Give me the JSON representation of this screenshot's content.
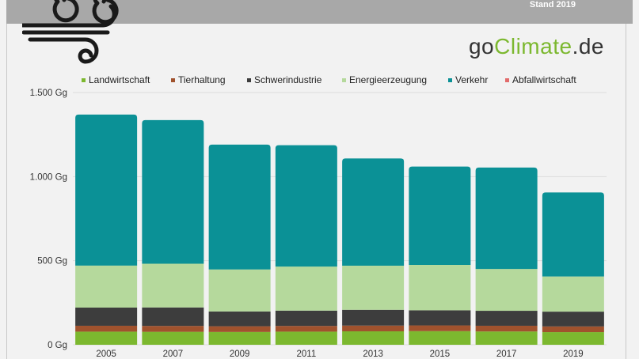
{
  "header": {
    "stand": "Stand 2019",
    "brand_go": "go",
    "brand_climate": "Climate",
    "brand_de": ".de"
  },
  "logo": {
    "icon": "wind-icon"
  },
  "chart_data": {
    "type": "bar",
    "stacked": true,
    "categories": [
      "2005",
      "2007",
      "2009",
      "2011",
      "2013",
      "2015",
      "2017",
      "2019"
    ],
    "series": [
      {
        "name": "Landwirtschaft",
        "color": "#7cb82f",
        "values": [
          78,
          77,
          76,
          78,
          80,
          81,
          79,
          75
        ]
      },
      {
        "name": "Tierhaltung",
        "color": "#a0522d",
        "values": [
          35,
          35,
          34,
          34,
          34,
          34,
          34,
          34
        ]
      },
      {
        "name": "Schwerindustrie",
        "color": "#3d3d3d",
        "values": [
          108,
          110,
          88,
          91,
          94,
          90,
          89,
          88
        ]
      },
      {
        "name": "Energieerzeugung",
        "color": "#b5d99c",
        "values": [
          250,
          260,
          250,
          262,
          262,
          270,
          249,
          209
        ]
      },
      {
        "name": "Verkehr",
        "color": "#0b9196",
        "values": [
          898,
          854,
          742,
          722,
          638,
          585,
          603,
          500
        ]
      },
      {
        "name": "Abfallwirtschaft",
        "color": "#e26b6b",
        "values": [
          0,
          0,
          0,
          0,
          0,
          0,
          0,
          0
        ]
      }
    ],
    "yticks": [
      "0 Gg",
      "500 Gg",
      "1.000 Gg",
      "1.500 Gg"
    ],
    "ytick_values": [
      0,
      500,
      1000,
      1500
    ],
    "ylim": [
      0,
      1500
    ],
    "legend_position": "top",
    "grid": true
  }
}
